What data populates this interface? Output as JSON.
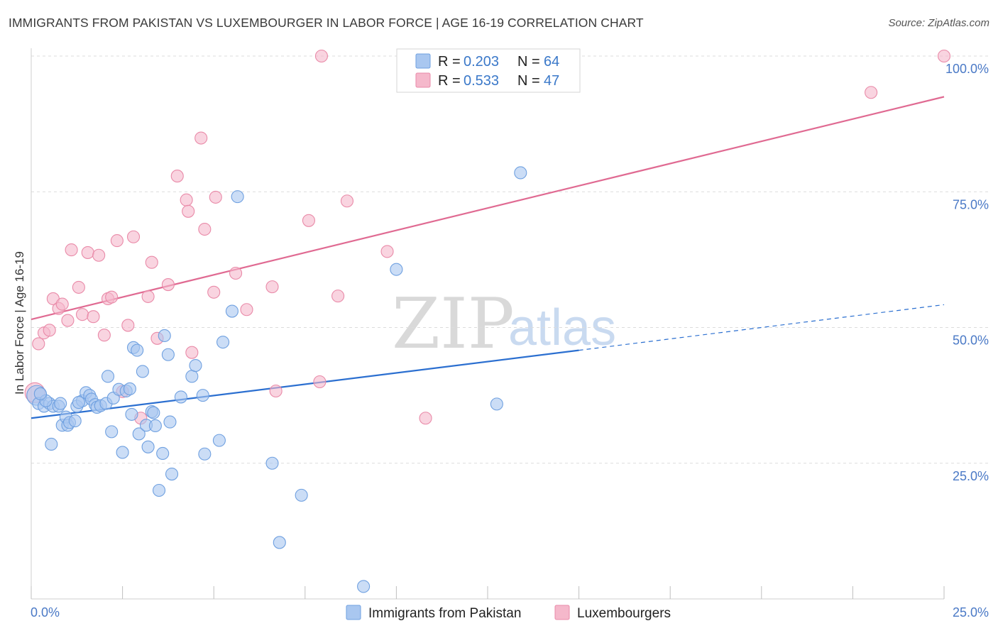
{
  "header": {
    "title": "IMMIGRANTS FROM PAKISTAN VS LUXEMBOURGER IN LABOR FORCE | AGE 16-19 CORRELATION CHART",
    "source": "Source: ZipAtlas.com"
  },
  "watermark": {
    "zip": "ZIP",
    "atlas": "atlas"
  },
  "legend": {
    "rows": [
      {
        "r_label": "R =",
        "r_value": "0.203",
        "n_label": "N =",
        "n_value": "64",
        "color": "#a9c7f0"
      },
      {
        "r_label": "R =",
        "r_value": "0.533",
        "n_label": "N =",
        "n_value": "47",
        "color": "#f5b8cb"
      }
    ]
  },
  "bottom_legend": [
    {
      "label": "Immigrants from Pakistan",
      "color": "#a9c7f0"
    },
    {
      "label": "Luxembourgers",
      "color": "#f5b8cb"
    }
  ],
  "chart_data": {
    "type": "scatter",
    "title": "IMMIGRANTS FROM PAKISTAN VS LUXEMBOURGER IN LABOR FORCE | AGE 16-19 CORRELATION CHART",
    "xlabel": "",
    "ylabel": "In Labor Force | Age 16-19",
    "xlim": [
      0,
      25
    ],
    "ylim": [
      0,
      100
    ],
    "x_tick_labels": [
      "0.0%",
      "25.0%"
    ],
    "y_tick_labels": [
      "25.0%",
      "50.0%",
      "75.0%",
      "100.0%"
    ],
    "y_ticks": [
      25,
      50,
      75,
      100
    ],
    "grid": true,
    "legend_position": "top-center",
    "series": [
      {
        "name": "Immigrants from Pakistan",
        "color": "#6fa0e0",
        "fill": "#a9c7f0",
        "trend": {
          "x": [
            0,
            15
          ],
          "y": [
            33.3,
            45.8
          ],
          "dashed_to": [
            25,
            54.2
          ]
        },
        "points": [
          [
            0.15,
            37.5
          ],
          [
            0.2,
            36.0
          ],
          [
            0.35,
            35.5
          ],
          [
            0.5,
            36.0
          ],
          [
            0.55,
            28.5
          ],
          [
            0.6,
            35.5
          ],
          [
            0.75,
            35.5
          ],
          [
            0.8,
            36.0
          ],
          [
            0.85,
            32.0
          ],
          [
            0.95,
            33.5
          ],
          [
            1.0,
            32.0
          ],
          [
            1.05,
            32.5
          ],
          [
            1.2,
            32.8
          ],
          [
            1.25,
            35.5
          ],
          [
            1.4,
            36.5
          ],
          [
            1.5,
            38.0
          ],
          [
            1.6,
            37.5
          ],
          [
            1.65,
            36.8
          ],
          [
            1.75,
            35.8
          ],
          [
            1.8,
            35.3
          ],
          [
            1.9,
            35.6
          ],
          [
            2.05,
            36.0
          ],
          [
            2.1,
            41.0
          ],
          [
            2.2,
            30.8
          ],
          [
            2.25,
            37.0
          ],
          [
            2.4,
            38.6
          ],
          [
            2.5,
            27.0
          ],
          [
            2.6,
            38.3
          ],
          [
            2.7,
            38.7
          ],
          [
            2.75,
            34.0
          ],
          [
            2.8,
            46.3
          ],
          [
            2.9,
            45.8
          ],
          [
            2.95,
            30.4
          ],
          [
            3.05,
            41.9
          ],
          [
            3.15,
            32.0
          ],
          [
            3.2,
            28.0
          ],
          [
            3.3,
            34.5
          ],
          [
            3.35,
            34.3
          ],
          [
            3.4,
            31.9
          ],
          [
            3.5,
            20.0
          ],
          [
            3.6,
            26.8
          ],
          [
            3.65,
            48.5
          ],
          [
            3.75,
            45.0
          ],
          [
            3.8,
            32.6
          ],
          [
            3.85,
            23.0
          ],
          [
            4.1,
            37.2
          ],
          [
            4.4,
            41.0
          ],
          [
            4.5,
            43.0
          ],
          [
            4.7,
            37.5
          ],
          [
            4.75,
            26.7
          ],
          [
            5.15,
            29.2
          ],
          [
            5.25,
            47.3
          ],
          [
            5.5,
            53.0
          ],
          [
            5.65,
            74.1
          ],
          [
            6.6,
            25.0
          ],
          [
            6.8,
            10.4
          ],
          [
            7.4,
            19.1
          ],
          [
            9.1,
            2.3
          ],
          [
            10.0,
            60.7
          ],
          [
            12.75,
            35.9
          ],
          [
            13.4,
            78.5
          ],
          [
            1.3,
            36.2
          ],
          [
            0.4,
            36.5
          ],
          [
            0.25,
            37.8
          ]
        ]
      },
      {
        "name": "Luxembourgers",
        "color": "#e98aa8",
        "fill": "#f5b8cb",
        "trend": {
          "x": [
            0,
            25
          ],
          "y": [
            51.5,
            92.5
          ]
        },
        "points": [
          [
            0.1,
            38.0
          ],
          [
            0.2,
            47.0
          ],
          [
            0.35,
            49.0
          ],
          [
            0.5,
            49.5
          ],
          [
            0.6,
            55.3
          ],
          [
            0.75,
            53.5
          ],
          [
            0.85,
            54.3
          ],
          [
            1.0,
            51.3
          ],
          [
            1.1,
            64.3
          ],
          [
            1.3,
            57.4
          ],
          [
            1.4,
            52.4
          ],
          [
            1.55,
            63.8
          ],
          [
            1.7,
            52.0
          ],
          [
            1.85,
            63.3
          ],
          [
            2.0,
            48.6
          ],
          [
            2.1,
            55.3
          ],
          [
            2.2,
            55.6
          ],
          [
            2.35,
            66.0
          ],
          [
            2.5,
            38.2
          ],
          [
            2.65,
            50.4
          ],
          [
            2.8,
            66.7
          ],
          [
            3.0,
            33.3
          ],
          [
            3.2,
            55.7
          ],
          [
            3.3,
            62.0
          ],
          [
            3.45,
            48.0
          ],
          [
            3.75,
            57.9
          ],
          [
            4.0,
            77.9
          ],
          [
            4.25,
            73.5
          ],
          [
            4.3,
            71.4
          ],
          [
            4.4,
            45.4
          ],
          [
            4.65,
            84.9
          ],
          [
            4.75,
            68.1
          ],
          [
            5.0,
            56.5
          ],
          [
            5.05,
            74.0
          ],
          [
            5.6,
            60.0
          ],
          [
            5.9,
            53.3
          ],
          [
            6.6,
            57.5
          ],
          [
            6.7,
            38.3
          ],
          [
            7.6,
            69.7
          ],
          [
            7.9,
            40.0
          ],
          [
            7.95,
            100.0
          ],
          [
            8.4,
            55.8
          ],
          [
            8.65,
            73.3
          ],
          [
            9.75,
            64.0
          ],
          [
            10.8,
            33.3
          ],
          [
            23.0,
            93.3
          ],
          [
            25.0,
            100.0
          ]
        ]
      }
    ]
  }
}
